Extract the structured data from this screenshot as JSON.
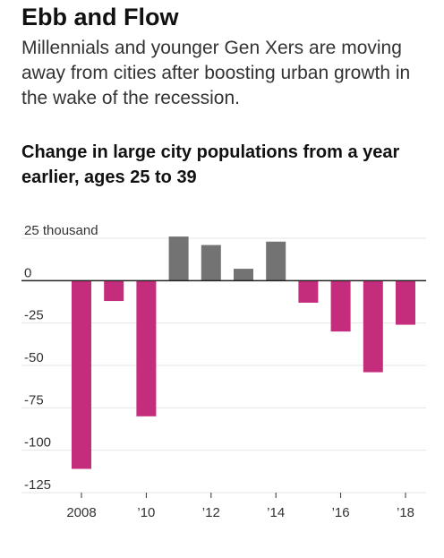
{
  "headline": "Ebb and Flow",
  "dek": "Millennials and younger Gen Xers are moving away from cities after boosting urban growth in the wake of the recession.",
  "colors": {
    "negative": "#c42d7b",
    "positive": "#737373",
    "grid": "#e6e6e6",
    "zero": "#222222"
  },
  "chart_data": {
    "type": "bar",
    "title": "Change in large city populations from a year earlier, ages 25 to 39",
    "xlabel": "",
    "ylabel": "",
    "categories": [
      "2008",
      "2009",
      "2010",
      "2011",
      "2012",
      "2013",
      "2014",
      "2015",
      "2016",
      "2017",
      "2018"
    ],
    "values": [
      -111,
      -12,
      -80,
      26,
      21,
      7,
      23,
      -13,
      -30,
      -54,
      -26
    ],
    "ylim": [
      -125,
      25
    ],
    "yticks": [
      25,
      0,
      -25,
      -50,
      -75,
      -100,
      -125
    ],
    "ytick_labels": [
      "25 thousand",
      "0",
      "-25",
      "-50",
      "-75",
      "-100",
      "-125"
    ],
    "xtick_labels": [
      "2008",
      "’10",
      "’12",
      "’14",
      "’16",
      "’18"
    ],
    "xtick_categories": [
      "2008",
      "2010",
      "2012",
      "2014",
      "2016",
      "2018"
    ],
    "grid": true
  }
}
